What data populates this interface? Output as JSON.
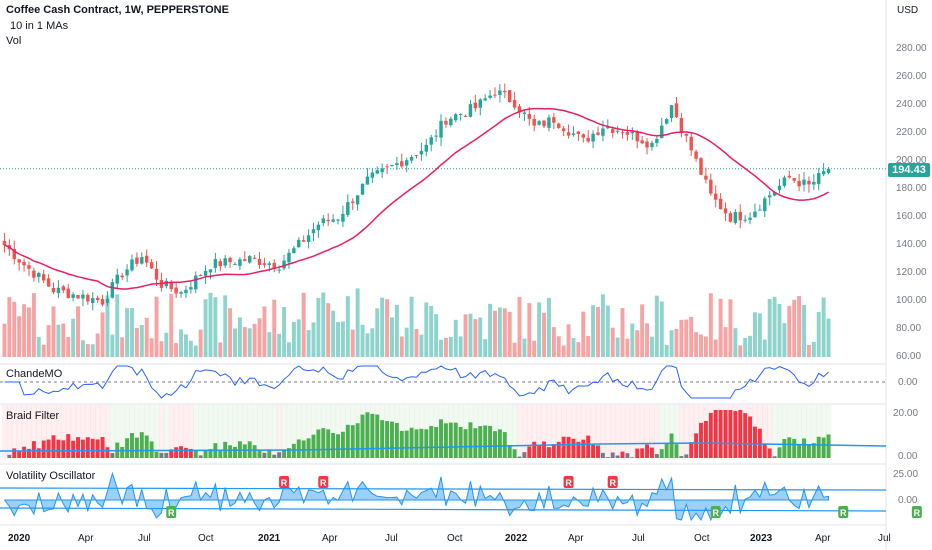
{
  "header": {
    "title": "Coffee Cash Contract, 1W, PEPPERSTONE",
    "indicator_ma": "10 in 1 MAs",
    "indicator_vol": "Vol"
  },
  "currency": "USD",
  "last_price": "194.43",
  "colors": {
    "up": "#26a69a",
    "down": "#ef5350",
    "ma": "#e91e63",
    "vol_up": "#8fd3cd",
    "vol_down": "#f5a3a3",
    "chande": "#2962ff",
    "braid_green": "#4caf50",
    "braid_red": "#f23645",
    "braid_gray": "#787b86",
    "braid_line": "#2196f3",
    "vol_osc": "#2196f3",
    "axis_text": "#787b86"
  },
  "price_axis": {
    "ticks": [
      "280.00",
      "260.00",
      "240.00",
      "220.00",
      "200.00",
      "180.00",
      "160.00",
      "140.00",
      "120.00",
      "100.00",
      "80.00",
      "60.00"
    ]
  },
  "panes": {
    "chande": {
      "title": "ChandeMO",
      "ticks": [
        "0.00"
      ]
    },
    "braid": {
      "title": "Braid Filter",
      "ticks": [
        "20.00",
        "0.00"
      ]
    },
    "volosc": {
      "title": "Volatility Oscillator",
      "ticks": [
        "25.00",
        "0.00"
      ]
    }
  },
  "time_axis": {
    "labels": [
      {
        "text": "2020",
        "bold": true
      },
      {
        "text": "Apr",
        "bold": false
      },
      {
        "text": "Jul",
        "bold": false
      },
      {
        "text": "Oct",
        "bold": false
      },
      {
        "text": "2021",
        "bold": true
      },
      {
        "text": "Apr",
        "bold": false
      },
      {
        "text": "Jul",
        "bold": false
      },
      {
        "text": "Oct",
        "bold": false
      },
      {
        "text": "2022",
        "bold": true
      },
      {
        "text": "Apr",
        "bold": false
      },
      {
        "text": "Jul",
        "bold": false
      },
      {
        "text": "Oct",
        "bold": false
      },
      {
        "text": "2023",
        "bold": true
      },
      {
        "text": "Apr",
        "bold": false
      },
      {
        "text": "Jul",
        "bold": false
      }
    ]
  },
  "chart_data": {
    "type": "candlestick",
    "price_range": [
      60,
      290
    ],
    "close_series_keypoints": [
      {
        "week": 0,
        "close": 140
      },
      {
        "week": 4,
        "close": 126
      },
      {
        "week": 10,
        "close": 108
      },
      {
        "week": 20,
        "close": 100
      },
      {
        "week": 24,
        "close": 120
      },
      {
        "week": 28,
        "close": 132
      },
      {
        "week": 32,
        "close": 112
      },
      {
        "week": 36,
        "close": 106
      },
      {
        "week": 42,
        "close": 126
      },
      {
        "week": 50,
        "close": 130
      },
      {
        "week": 56,
        "close": 126
      },
      {
        "week": 60,
        "close": 140
      },
      {
        "week": 64,
        "close": 155
      },
      {
        "week": 68,
        "close": 160
      },
      {
        "week": 74,
        "close": 186
      },
      {
        "week": 80,
        "close": 198
      },
      {
        "week": 86,
        "close": 210
      },
      {
        "week": 90,
        "close": 230
      },
      {
        "week": 96,
        "close": 238
      },
      {
        "week": 100,
        "close": 250
      },
      {
        "week": 104,
        "close": 242
      },
      {
        "week": 108,
        "close": 224
      },
      {
        "week": 112,
        "close": 230
      },
      {
        "week": 118,
        "close": 214
      },
      {
        "week": 122,
        "close": 225
      },
      {
        "week": 126,
        "close": 222
      },
      {
        "week": 132,
        "close": 212
      },
      {
        "week": 136,
        "close": 240
      },
      {
        "week": 140,
        "close": 208
      },
      {
        "week": 144,
        "close": 175
      },
      {
        "week": 148,
        "close": 160
      },
      {
        "week": 152,
        "close": 162
      },
      {
        "week": 156,
        "close": 176
      },
      {
        "week": 160,
        "close": 188
      },
      {
        "week": 164,
        "close": 182
      },
      {
        "week": 168,
        "close": 194.43
      }
    ],
    "last_close": 194.43,
    "signals": {
      "R_red_weeks": [
        57,
        65,
        115,
        124
      ],
      "R_green_weeks": [
        34,
        145,
        171,
        186
      ]
    }
  }
}
